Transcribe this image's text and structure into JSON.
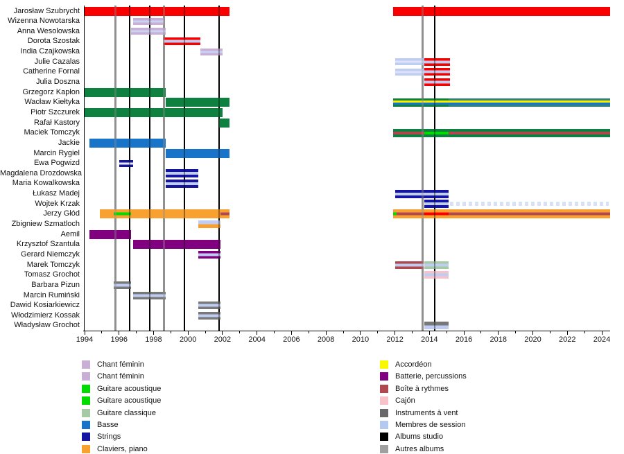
{
  "chart_data": {
    "type": "timeline",
    "description": "Band members timeline (Gantt-style) with instrument color coding and album release lines",
    "axis": {
      "unit": "year",
      "start": 1994,
      "end": 2024.5,
      "major_tick_labels": [
        1994,
        1996,
        1998,
        2000,
        2002,
        2004,
        2006,
        2008,
        2010,
        2012,
        2014,
        2016,
        2018,
        2020,
        2022,
        2024
      ],
      "minor_ticks_every_year": true,
      "grid": false
    },
    "event_lines": {
      "albums_studio": {
        "color": "#000000",
        "years": [
          1996.6,
          1997.8,
          1999.8,
          2001.8,
          2014.3
        ]
      },
      "autres_albums": {
        "color": "#909090",
        "years": [
          1995.8,
          1998.6,
          2013.6
        ]
      }
    },
    "rows": [
      {
        "name": "Jarosław Szubrycht",
        "bars": [
          {
            "from": 1994.0,
            "to": 2002.4,
            "stripes": [
              "#F80000"
            ],
            "h": 13
          },
          {
            "from": 2011.9,
            "to": 2024.5,
            "stripes": [
              "#F80000"
            ],
            "h": 13
          }
        ]
      },
      {
        "name": "Wizenna Nowotarska",
        "bars": [
          {
            "from": 1996.8,
            "to": 1998.6,
            "stripes": [
              "#C9AED6",
              "#C9D3F4",
              "#C9AED6"
            ],
            "h": 10
          }
        ]
      },
      {
        "name": "Anna Wesolowska",
        "bars": [
          {
            "from": 1996.7,
            "to": 1998.7,
            "stripes": [
              "#C9AED6",
              "#C9D3F4",
              "#C9AED6"
            ],
            "h": 10
          }
        ]
      },
      {
        "name": "Dorota Szostak",
        "bars": [
          {
            "from": 1998.6,
            "to": 2000.7,
            "stripes": [
              "#F80000",
              "#BFCDF2",
              "#F80000"
            ],
            "h": 11
          }
        ]
      },
      {
        "name": "India Czajkowska",
        "bars": [
          {
            "from": 2000.7,
            "to": 2002.0,
            "stripes": [
              "#C9AED6",
              "#C9D3F4",
              "#C9AED6"
            ],
            "h": 10
          }
        ]
      },
      {
        "name": "Julie Cazalas",
        "bars": [
          {
            "from": 2012.0,
            "to": 2013.7,
            "stripes": [
              "#BFCDF2",
              "#DDE3F8",
              "#BFCDF2"
            ],
            "h": 10
          },
          {
            "from": 2013.7,
            "to": 2015.2,
            "stripes": [
              "#F80000",
              "#BFCDF2",
              "#F80000"
            ],
            "h": 11
          }
        ]
      },
      {
        "name": "Catherine Fornal",
        "bars": [
          {
            "from": 2012.0,
            "to": 2013.7,
            "stripes": [
              "#BFCDF2",
              "#DDE3F8",
              "#BFCDF2"
            ],
            "h": 10
          },
          {
            "from": 2013.7,
            "to": 2015.2,
            "stripes": [
              "#F80000",
              "#BFCDF2",
              "#F80000"
            ],
            "h": 11
          }
        ]
      },
      {
        "name": "Julia Doszna",
        "bars": [
          {
            "from": 2013.7,
            "to": 2015.2,
            "stripes": [
              "#F80000",
              "#BFCDF2",
              "#F80000"
            ],
            "h": 11
          }
        ]
      },
      {
        "name": "Grzegorz Kapłon",
        "bars": [
          {
            "from": 1994.0,
            "to": 1998.7,
            "stripes": [
              "#0E8040"
            ],
            "h": 13
          }
        ]
      },
      {
        "name": "Wacław Kiełtyka",
        "bars": [
          {
            "from": 1998.7,
            "to": 2002.4,
            "stripes": [
              "#0E8040"
            ],
            "h": 13
          },
          {
            "from": 2011.9,
            "to": 2015.1,
            "stripes": [
              "#0E8040",
              "#F8F000",
              "#1874C8",
              "#0E8040"
            ],
            "h": 12
          },
          {
            "from": 2015.1,
            "to": 2024.5,
            "stripes": [
              "#2E8080",
              "#F8F000",
              "#1874C8",
              "#2E8080"
            ],
            "h": 12
          }
        ]
      },
      {
        "name": "Piotr Szczurek",
        "bars": [
          {
            "from": 1994.0,
            "to": 2002.0,
            "stripes": [
              "#0E8040"
            ],
            "h": 13
          }
        ]
      },
      {
        "name": "Rafał Kastory",
        "bars": [
          {
            "from": 2001.8,
            "to": 2002.4,
            "stripes": [
              "#0E8040"
            ],
            "h": 13
          }
        ]
      },
      {
        "name": "Maciek Tomczyk",
        "bars": [
          {
            "from": 2011.9,
            "to": 2013.7,
            "stripes": [
              "#0E8040",
              "#B04850",
              "#0E8040"
            ],
            "h": 12
          },
          {
            "from": 2013.7,
            "to": 2015.1,
            "stripes": [
              "#0E8040",
              "#00DC00",
              "#0E8040"
            ],
            "h": 12
          },
          {
            "from": 2015.1,
            "to": 2024.5,
            "stripes": [
              "#0E8040",
              "#B04850",
              "#0E8040"
            ],
            "h": 12
          }
        ]
      },
      {
        "name": "Jackie",
        "bars": [
          {
            "from": 1994.3,
            "to": 1998.7,
            "stripes": [
              "#1874C8"
            ],
            "h": 13
          }
        ]
      },
      {
        "name": "Marcin Rygiel",
        "bars": [
          {
            "from": 1998.7,
            "to": 2002.4,
            "stripes": [
              "#1874C8"
            ],
            "h": 13
          }
        ]
      },
      {
        "name": "Ewa Pogwizd",
        "bars": [
          {
            "from": 1996.0,
            "to": 1996.8,
            "stripes": [
              "#1414A0",
              "#E8E8F8",
              "#1414A0"
            ],
            "h": 10
          }
        ]
      },
      {
        "name": "Magdalena Drozdowska",
        "bars": [
          {
            "from": 1998.7,
            "to": 2000.6,
            "stripes": [
              "#1414A0",
              "#BFCDF2",
              "#1414A0"
            ],
            "h": 12
          }
        ]
      },
      {
        "name": "Maria Kowalkowska",
        "bars": [
          {
            "from": 1998.7,
            "to": 2000.6,
            "stripes": [
              "#1414A0",
              "#BFCDF2",
              "#1414A0"
            ],
            "h": 12
          }
        ]
      },
      {
        "name": "Łukasz Madej",
        "bars": [
          {
            "from": 2012.0,
            "to": 2015.1,
            "stripes": [
              "#1414A0",
              "#BFCDF2",
              "#1414A0"
            ],
            "h": 12
          }
        ]
      },
      {
        "name": "Wojtek Krzak",
        "bars": [
          {
            "from": 2013.7,
            "to": 2015.1,
            "stripes": [
              "#1414A0",
              "#BFCDF2",
              "#1414A0"
            ],
            "h": 12
          },
          {
            "from": 2015.2,
            "to": 2024.4,
            "stripes": [
              "#B4C8F0"
            ],
            "h": 6,
            "dashed": true
          }
        ]
      },
      {
        "name": "Jerzy Głód",
        "bars": [
          {
            "from": 1994.9,
            "to": 1995.7,
            "stripes": [
              "#F8A030"
            ],
            "h": 13
          },
          {
            "from": 1995.7,
            "to": 1996.7,
            "stripes": [
              "#F8A030",
              "#00DC00",
              "#F8A030"
            ],
            "h": 13
          },
          {
            "from": 1996.7,
            "to": 2001.9,
            "stripes": [
              "#F8A030"
            ],
            "h": 13
          },
          {
            "from": 2001.9,
            "to": 2002.4,
            "stripes": [
              "#F8A030",
              "#B04850",
              "#F8A030"
            ],
            "h": 13
          },
          {
            "from": 2011.9,
            "to": 2012.1,
            "stripes": [
              "#F8A030",
              "#00DC00",
              "#F8A030"
            ],
            "h": 13
          },
          {
            "from": 2012.1,
            "to": 2013.7,
            "stripes": [
              "#F8A030",
              "#B04850",
              "#F8A030"
            ],
            "h": 13
          },
          {
            "from": 2013.7,
            "to": 2015.1,
            "stripes": [
              "#F8A030",
              "#F80000",
              "#F8A030"
            ],
            "h": 13
          },
          {
            "from": 2015.1,
            "to": 2024.5,
            "stripes": [
              "#F8A030",
              "#B04850",
              "#F8A030"
            ],
            "h": 13
          }
        ]
      },
      {
        "name": "Zbigniew Szmatloch",
        "bars": [
          {
            "from": 2000.6,
            "to": 2001.9,
            "stripes": [
              "#BFCDF2",
              "#F8A030"
            ],
            "h": 11
          }
        ]
      },
      {
        "name": "Aemil",
        "bars": [
          {
            "from": 1994.3,
            "to": 1996.7,
            "stripes": [
              "#800080"
            ],
            "h": 13
          }
        ]
      },
      {
        "name": "Krzysztof Szantula",
        "bars": [
          {
            "from": 1996.8,
            "to": 2001.9,
            "stripes": [
              "#800080"
            ],
            "h": 13
          }
        ]
      },
      {
        "name": "Gerard Niemczyk",
        "bars": [
          {
            "from": 2000.6,
            "to": 2001.9,
            "stripes": [
              "#800080",
              "#BFCDF2",
              "#800080"
            ],
            "h": 11
          }
        ]
      },
      {
        "name": "Marek Tomczyk",
        "bars": [
          {
            "from": 2012.0,
            "to": 2013.65,
            "stripes": [
              "#B04850",
              "#BFCDF2",
              "#B04850"
            ],
            "h": 11
          },
          {
            "from": 2013.7,
            "to": 2015.1,
            "stripes": [
              "#A6C9A6",
              "#BFCDF2",
              "#A6C9A6"
            ],
            "h": 11
          }
        ]
      },
      {
        "name": "Tomasz Grochot",
        "bars": [
          {
            "from": 2013.7,
            "to": 2015.1,
            "stripes": [
              "#F8C2CA",
              "#BFCDF2",
              "#F8C2CA"
            ],
            "h": 11
          }
        ]
      },
      {
        "name": "Barbara Pizun",
        "bars": [
          {
            "from": 1995.7,
            "to": 1996.7,
            "stripes": [
              "#787878",
              "#BFCDF2",
              "#787878"
            ],
            "h": 11
          }
        ]
      },
      {
        "name": "Marcin Rumiński",
        "bars": [
          {
            "from": 1996.8,
            "to": 1998.7,
            "stripes": [
              "#787878",
              "#BFCDF2",
              "#787878"
            ],
            "h": 11
          }
        ]
      },
      {
        "name": "Dawid Kosiarkiewicz",
        "bars": [
          {
            "from": 2000.6,
            "to": 2001.9,
            "stripes": [
              "#787878",
              "#BFCDF2",
              "#787878"
            ],
            "h": 11
          }
        ]
      },
      {
        "name": "Włodzimierz Kossak",
        "bars": [
          {
            "from": 2000.6,
            "to": 2001.9,
            "stripes": [
              "#787878",
              "#BFCDF2",
              "#787878"
            ],
            "h": 11
          }
        ]
      },
      {
        "name": "Władysław Grochot",
        "bars": [
          {
            "from": 2013.7,
            "to": 2015.1,
            "stripes": [
              "#787878",
              "#BFCDF2"
            ],
            "h": 11
          }
        ]
      }
    ],
    "legend_left": [
      {
        "label": "Chant féminin",
        "color": "#C9AED6"
      },
      {
        "label": "Chant féminin",
        "color": "#C9AED6"
      },
      {
        "label": "Guitare acoustique",
        "color": "#00DC00"
      },
      {
        "label": "Guitare acoustique",
        "color": "#00DC00"
      },
      {
        "label": "Guitare classique",
        "color": "#A6C9A6"
      },
      {
        "label": "Basse",
        "color": "#1874C8"
      },
      {
        "label": "Strings",
        "color": "#1414A0"
      },
      {
        "label": "Claviers, piano",
        "color": "#F8A030"
      }
    ],
    "legend_right": [
      {
        "label": "Accordéon",
        "color": "#F8F800"
      },
      {
        "label": "Batterie, percussions",
        "color": "#800080"
      },
      {
        "label": "Boîte à rythmes",
        "color": "#B04850"
      },
      {
        "label": "Cajón",
        "color": "#F8C2CA"
      },
      {
        "label": "Instruments à vent",
        "color": "#696969"
      },
      {
        "label": "Membres de session",
        "color": "#B4C8F0"
      },
      {
        "label": "Albums studio",
        "color": "#000000"
      },
      {
        "label": "Autres albums",
        "color": "#A0A0A0"
      }
    ]
  }
}
